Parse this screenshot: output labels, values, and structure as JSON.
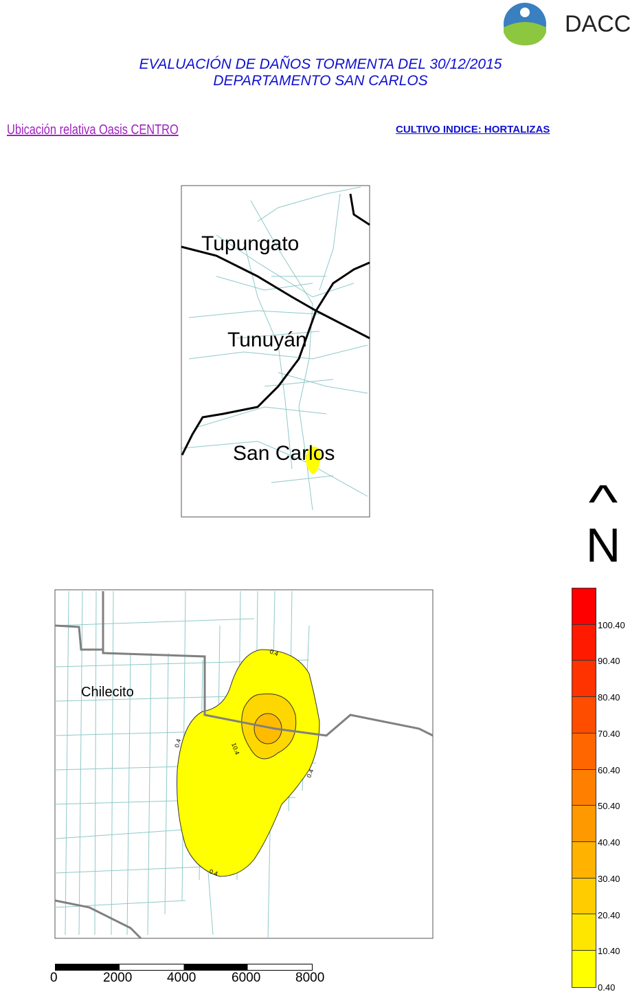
{
  "logo": {
    "text": "DACC"
  },
  "title": {
    "line1": "EVALUACIÓN DE DAÑOS TORMENTA DEL 30/12/2015",
    "line2": "DEPARTAMENTO SAN CARLOS"
  },
  "location_label": "Ubicación relativa Oasis CENTRO",
  "crop_label": "CULTIVO INDICE: HORTALIZAS",
  "overview_map": {
    "places": [
      "Tupungato",
      "Tunuyán",
      "San Carlos"
    ]
  },
  "detail_map": {
    "places": [
      "Chilecito"
    ],
    "contour_labels": [
      "0.4",
      "0.4",
      "0.4",
      "10.4",
      "0.4"
    ]
  },
  "north_arrow": {
    "symbol": "^",
    "letter": "N"
  },
  "scale_bar": {
    "labels": [
      "0",
      "2000",
      "4000",
      "6000",
      "8000"
    ]
  },
  "legend": {
    "labels": [
      "100.40",
      "90.40",
      "80.40",
      "70.40",
      "60.40",
      "50.40",
      "40.40",
      "30.40",
      "20.40",
      "10.40",
      "0.40"
    ],
    "colors": [
      "#ff0000",
      "#ff1a00",
      "#ff3300",
      "#ff4d00",
      "#ff6600",
      "#ff8000",
      "#ff9900",
      "#ffb300",
      "#ffcc00",
      "#ffe600",
      "#ffff00"
    ]
  },
  "colors": {
    "title": "#1010d0",
    "location_label": "#a020c0",
    "roads": "#8fc8c8",
    "boundary": "#808080",
    "damage_low": "#ffff00"
  }
}
